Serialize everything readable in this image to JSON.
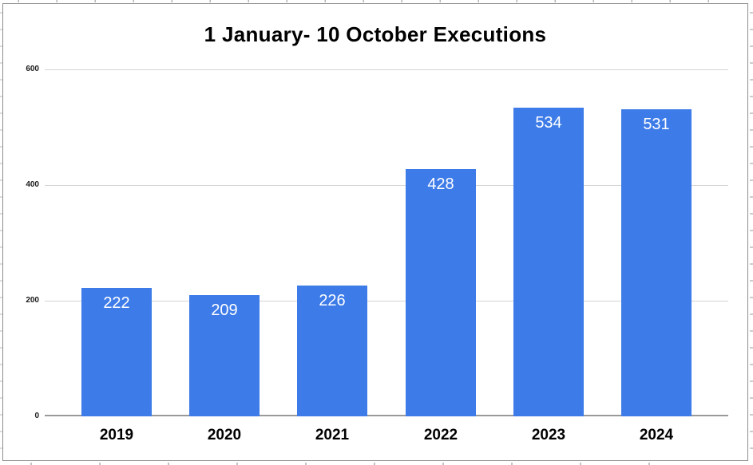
{
  "chart_data": {
    "type": "bar",
    "title": "1 January- 10 October Executions",
    "categories": [
      "2019",
      "2020",
      "2021",
      "2022",
      "2023",
      "2024"
    ],
    "values": [
      222,
      209,
      226,
      428,
      534,
      531
    ],
    "xlabel": "",
    "ylabel": "",
    "ylim": [
      0,
      600
    ],
    "yticks": [
      0,
      200,
      400,
      600
    ],
    "grid": true,
    "legend_position": "none",
    "bar_color": "#3d7be8",
    "value_label_color": "#ffffff",
    "gridline_color": "#d4d4d4",
    "axis_line_color": "#9a9a9a"
  }
}
